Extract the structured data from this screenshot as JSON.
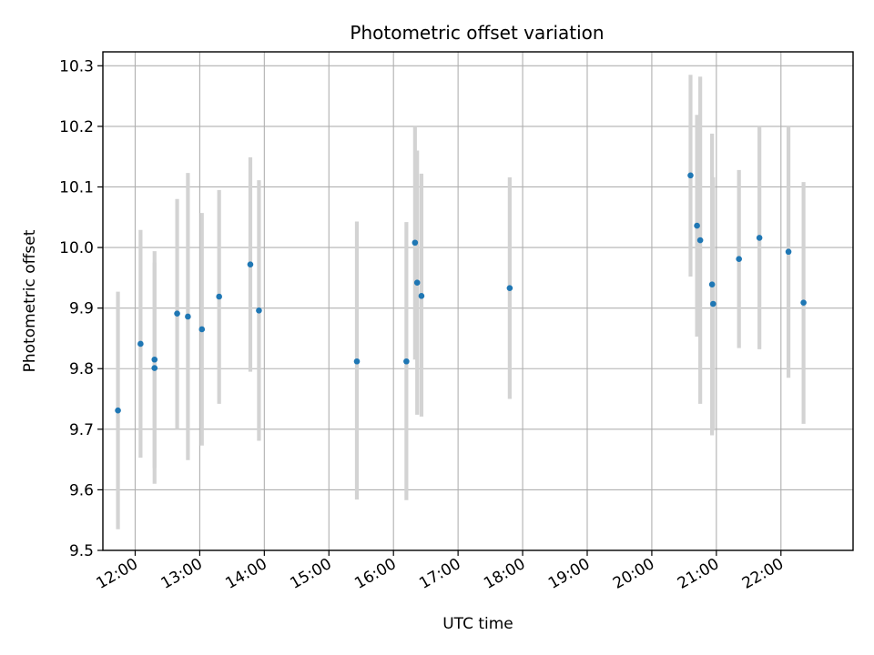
{
  "chart_data": {
    "type": "scatter",
    "title": "Photometric offset variation",
    "xlabel": "UTC time",
    "ylabel": "Photometric offset",
    "x_ticks": [
      "12:00",
      "13:00",
      "14:00",
      "15:00",
      "16:00",
      "17:00",
      "18:00",
      "19:00",
      "20:00",
      "21:00",
      "22:00"
    ],
    "y_ticks": [
      "9.5",
      "9.6",
      "9.7",
      "9.8",
      "9.9",
      "10.0",
      "10.1",
      "10.2",
      "10.3"
    ],
    "xlim": [
      "11:30",
      "23:07"
    ],
    "ylim": [
      9.5,
      10.323
    ],
    "grid": true,
    "marker_color": "#1f77b4",
    "errorbar_color": "#d3d3d3",
    "points": [
      {
        "time": "11:44",
        "y": 9.731,
        "lo": 9.535,
        "hi": 9.927
      },
      {
        "time": "12:05",
        "y": 9.841,
        "lo": 9.653,
        "hi": 10.029
      },
      {
        "time": "12:18",
        "y": 9.815,
        "lo": 9.636,
        "hi": 9.994
      },
      {
        "time": "12:18",
        "y": 9.801,
        "lo": 9.61,
        "hi": 9.975
      },
      {
        "time": "12:39",
        "y": 9.891,
        "lo": 9.7,
        "hi": 10.08
      },
      {
        "time": "12:49",
        "y": 9.886,
        "lo": 9.649,
        "hi": 10.123
      },
      {
        "time": "13:02",
        "y": 9.865,
        "lo": 9.673,
        "hi": 10.057
      },
      {
        "time": "13:18",
        "y": 9.919,
        "lo": 9.742,
        "hi": 10.095
      },
      {
        "time": "13:47",
        "y": 9.972,
        "lo": 9.795,
        "hi": 10.149
      },
      {
        "time": "13:55",
        "y": 9.896,
        "lo": 9.681,
        "hi": 10.111
      },
      {
        "time": "15:26",
        "y": 9.812,
        "lo": 9.584,
        "hi": 10.043
      },
      {
        "time": "16:12",
        "y": 9.812,
        "lo": 9.583,
        "hi": 10.042
      },
      {
        "time": "16:20",
        "y": 10.008,
        "lo": 9.815,
        "hi": 10.2
      },
      {
        "time": "16:22",
        "y": 9.942,
        "lo": 9.724,
        "hi": 10.16
      },
      {
        "time": "16:26",
        "y": 9.92,
        "lo": 9.721,
        "hi": 10.122
      },
      {
        "time": "17:48",
        "y": 9.933,
        "lo": 9.75,
        "hi": 10.116
      },
      {
        "time": "20:36",
        "y": 10.119,
        "lo": 9.952,
        "hi": 10.285
      },
      {
        "time": "20:42",
        "y": 10.036,
        "lo": 9.853,
        "hi": 10.219
      },
      {
        "time": "20:45",
        "y": 10.012,
        "lo": 9.742,
        "hi": 10.282
      },
      {
        "time": "20:56",
        "y": 9.939,
        "lo": 9.69,
        "hi": 10.188
      },
      {
        "time": "20:57",
        "y": 9.907,
        "lo": 9.698,
        "hi": 10.116
      },
      {
        "time": "21:21",
        "y": 9.981,
        "lo": 9.834,
        "hi": 10.128
      },
      {
        "time": "21:40",
        "y": 10.016,
        "lo": 9.832,
        "hi": 10.2
      },
      {
        "time": "22:07",
        "y": 9.993,
        "lo": 9.785,
        "hi": 10.2
      },
      {
        "time": "22:21",
        "y": 9.909,
        "lo": 9.709,
        "hi": 10.108
      }
    ]
  }
}
